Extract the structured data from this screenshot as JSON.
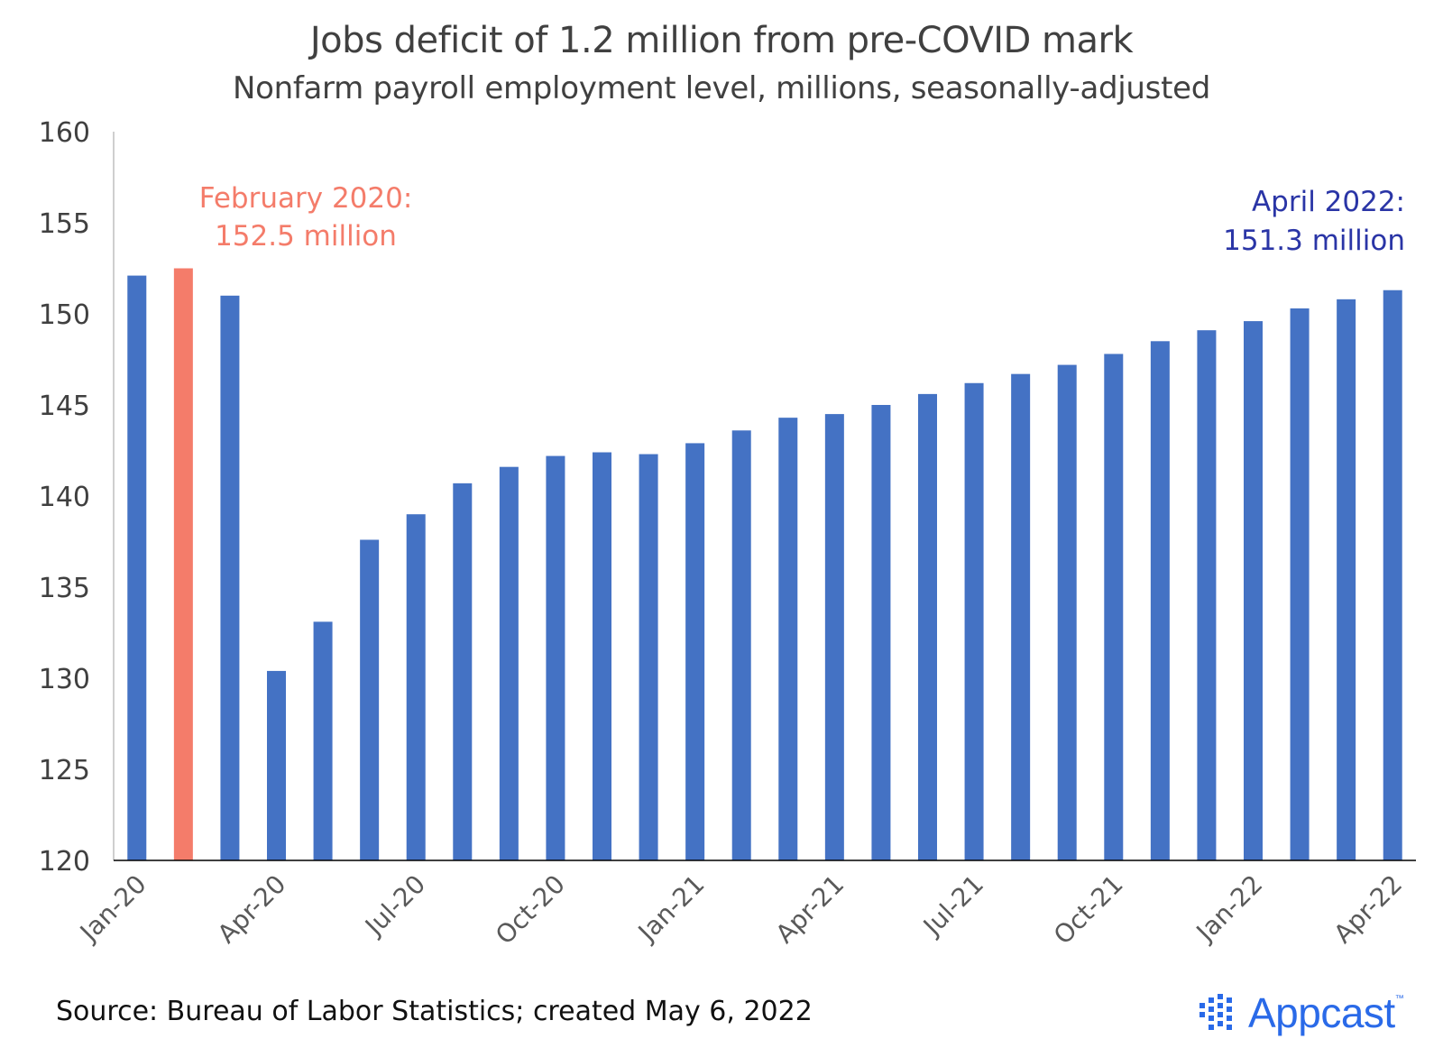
{
  "chart_data": {
    "type": "bar",
    "title": "Jobs deficit of 1.2 million from pre-COVID mark",
    "subtitle": "Nonfarm payroll employment level, millions, seasonally-adjusted",
    "categories": [
      "Jan-20",
      "Feb-20",
      "Mar-20",
      "Apr-20",
      "May-20",
      "Jun-20",
      "Jul-20",
      "Aug-20",
      "Sep-20",
      "Oct-20",
      "Nov-20",
      "Dec-20",
      "Jan-21",
      "Feb-21",
      "Mar-21",
      "Apr-21",
      "May-21",
      "Jun-21",
      "Jul-21",
      "Aug-21",
      "Sep-21",
      "Oct-21",
      "Nov-21",
      "Dec-21",
      "Jan-22",
      "Feb-22",
      "Mar-22",
      "Apr-22"
    ],
    "x_tick_labels": [
      "Jan-20",
      "Apr-20",
      "Jul-20",
      "Oct-20",
      "Jan-21",
      "Apr-21",
      "Jul-21",
      "Oct-21",
      "Jan-22",
      "Apr-22"
    ],
    "values": [
      152.1,
      152.5,
      151.0,
      130.4,
      133.1,
      137.6,
      139.0,
      140.7,
      141.6,
      142.2,
      142.4,
      142.3,
      142.9,
      143.6,
      144.3,
      144.5,
      145.0,
      145.6,
      146.2,
      146.7,
      147.2,
      147.8,
      148.5,
      149.1,
      149.6,
      150.3,
      150.8,
      151.3
    ],
    "highlight_index": 1,
    "ylim": [
      120,
      160
    ],
    "yticks": [
      120,
      125,
      130,
      135,
      140,
      145,
      150,
      155,
      160
    ],
    "grid": false,
    "colors": {
      "bar": "#4472c4",
      "highlight": "#f47c6a",
      "annotation_right": "#2a35a6"
    },
    "annotations": [
      {
        "lines": [
          "February 2020:",
          "152.5 million"
        ],
        "color": "#f47c6a"
      },
      {
        "lines": [
          "April 2022:",
          "151.3 million"
        ],
        "color": "#2a35a6"
      }
    ]
  },
  "footer": {
    "source": "Source: Bureau of Labor Statistics; created May 6, 2022",
    "brand": "Appcast",
    "brand_tm": "™",
    "brand_icon": "appcast-dots-logo"
  }
}
